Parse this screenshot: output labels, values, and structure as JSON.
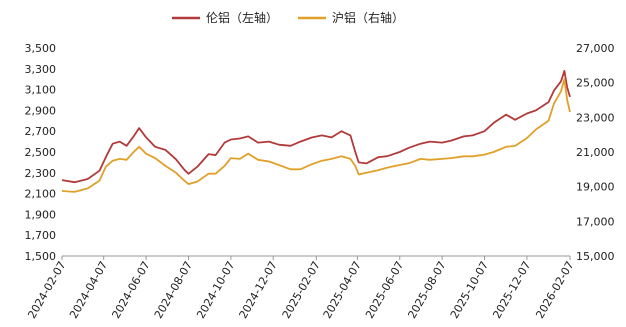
{
  "chart_data": {
    "type": "line",
    "legend_position": "top-center",
    "grid": false,
    "x_ticks": [
      "2024-02-07",
      "2024-04-07",
      "2024-06-07",
      "2024-08-07",
      "2024-10-07",
      "2024-12-07",
      "2025-02-07",
      "2025-04-07",
      "2025-06-07",
      "2025-08-07",
      "2025-10-07",
      "2025-12-07",
      "2026-02-07"
    ],
    "y_left": {
      "ticks": [
        "1,500",
        "1,700",
        "1,900",
        "2,100",
        "2,300",
        "2,500",
        "2,700",
        "2,900",
        "3,100",
        "3,300",
        "3,500"
      ],
      "range": [
        1500,
        3500
      ]
    },
    "y_right": {
      "ticks": [
        "15,000",
        "17,000",
        "19,000",
        "21,000",
        "23,000",
        "25,000",
        "27,000"
      ],
      "range": [
        15000,
        27000
      ]
    },
    "series": [
      {
        "name": "伦铝（左轴）",
        "axis": "left",
        "color": "#b23a3a",
        "points": [
          [
            "2024-02-07",
            2230
          ],
          [
            "2024-02-25",
            2210
          ],
          [
            "2024-03-15",
            2240
          ],
          [
            "2024-04-01",
            2320
          ],
          [
            "2024-04-10",
            2450
          ],
          [
            "2024-04-20",
            2580
          ],
          [
            "2024-04-30",
            2600
          ],
          [
            "2024-05-10",
            2560
          ],
          [
            "2024-05-20",
            2650
          ],
          [
            "2024-05-28",
            2730
          ],
          [
            "2024-06-07",
            2640
          ],
          [
            "2024-06-20",
            2550
          ],
          [
            "2024-07-05",
            2520
          ],
          [
            "2024-07-20",
            2430
          ],
          [
            "2024-08-01",
            2330
          ],
          [
            "2024-08-07",
            2290
          ],
          [
            "2024-08-20",
            2360
          ],
          [
            "2024-09-05",
            2480
          ],
          [
            "2024-09-15",
            2470
          ],
          [
            "2024-09-28",
            2590
          ],
          [
            "2024-10-07",
            2620
          ],
          [
            "2024-10-20",
            2630
          ],
          [
            "2024-11-01",
            2650
          ],
          [
            "2024-11-15",
            2590
          ],
          [
            "2024-12-01",
            2600
          ],
          [
            "2024-12-15",
            2570
          ],
          [
            "2025-01-01",
            2560
          ],
          [
            "2025-01-15",
            2600
          ],
          [
            "2025-02-01",
            2640
          ],
          [
            "2025-02-15",
            2660
          ],
          [
            "2025-03-01",
            2640
          ],
          [
            "2025-03-15",
            2700
          ],
          [
            "2025-03-28",
            2660
          ],
          [
            "2025-04-04",
            2500
          ],
          [
            "2025-04-09",
            2400
          ],
          [
            "2025-04-20",
            2390
          ],
          [
            "2025-05-07",
            2450
          ],
          [
            "2025-05-20",
            2460
          ],
          [
            "2025-06-07",
            2500
          ],
          [
            "2025-06-20",
            2540
          ],
          [
            "2025-07-07",
            2580
          ],
          [
            "2025-07-20",
            2600
          ],
          [
            "2025-08-07",
            2590
          ],
          [
            "2025-08-20",
            2610
          ],
          [
            "2025-09-07",
            2650
          ],
          [
            "2025-09-20",
            2660
          ],
          [
            "2025-10-07",
            2700
          ],
          [
            "2025-10-20",
            2780
          ],
          [
            "2025-11-07",
            2860
          ],
          [
            "2025-11-20",
            2810
          ],
          [
            "2025-12-07",
            2870
          ],
          [
            "2025-12-20",
            2900
          ],
          [
            "2026-01-07",
            2980
          ],
          [
            "2026-01-15",
            3090
          ],
          [
            "2026-01-25",
            3180
          ],
          [
            "2026-01-30",
            3280
          ],
          [
            "2026-02-03",
            3120
          ],
          [
            "2026-02-07",
            3030
          ]
        ]
      },
      {
        "name": "沪铝（右轴）",
        "axis": "right",
        "color": "#e0a02a",
        "points": [
          [
            "2024-02-07",
            18750
          ],
          [
            "2024-02-25",
            18700
          ],
          [
            "2024-03-15",
            18900
          ],
          [
            "2024-04-01",
            19350
          ],
          [
            "2024-04-10",
            20150
          ],
          [
            "2024-04-20",
            20500
          ],
          [
            "2024-04-30",
            20600
          ],
          [
            "2024-05-10",
            20550
          ],
          [
            "2024-05-20",
            21000
          ],
          [
            "2024-05-28",
            21300
          ],
          [
            "2024-06-07",
            20900
          ],
          [
            "2024-06-20",
            20650
          ],
          [
            "2024-07-05",
            20200
          ],
          [
            "2024-07-20",
            19800
          ],
          [
            "2024-08-01",
            19350
          ],
          [
            "2024-08-07",
            19150
          ],
          [
            "2024-08-20",
            19300
          ],
          [
            "2024-09-05",
            19750
          ],
          [
            "2024-09-15",
            19750
          ],
          [
            "2024-09-28",
            20200
          ],
          [
            "2024-10-07",
            20650
          ],
          [
            "2024-10-20",
            20600
          ],
          [
            "2024-11-01",
            20900
          ],
          [
            "2024-11-15",
            20550
          ],
          [
            "2024-12-01",
            20450
          ],
          [
            "2024-12-15",
            20250
          ],
          [
            "2025-01-01",
            20000
          ],
          [
            "2025-01-15",
            20000
          ],
          [
            "2025-02-01",
            20300
          ],
          [
            "2025-02-15",
            20500
          ],
          [
            "2025-03-01",
            20600
          ],
          [
            "2025-03-15",
            20750
          ],
          [
            "2025-03-28",
            20600
          ],
          [
            "2025-04-04",
            20200
          ],
          [
            "2025-04-09",
            19700
          ],
          [
            "2025-04-20",
            19800
          ],
          [
            "2025-05-07",
            19950
          ],
          [
            "2025-05-20",
            20100
          ],
          [
            "2025-06-07",
            20250
          ],
          [
            "2025-06-20",
            20350
          ],
          [
            "2025-07-07",
            20600
          ],
          [
            "2025-07-20",
            20550
          ],
          [
            "2025-08-07",
            20600
          ],
          [
            "2025-08-20",
            20650
          ],
          [
            "2025-09-07",
            20750
          ],
          [
            "2025-09-20",
            20750
          ],
          [
            "2025-10-07",
            20850
          ],
          [
            "2025-10-20",
            21000
          ],
          [
            "2025-11-07",
            21300
          ],
          [
            "2025-11-20",
            21350
          ],
          [
            "2025-12-07",
            21800
          ],
          [
            "2025-12-20",
            22300
          ],
          [
            "2026-01-07",
            22800
          ],
          [
            "2026-01-15",
            23800
          ],
          [
            "2026-01-25",
            24500
          ],
          [
            "2026-01-30",
            25200
          ],
          [
            "2026-02-03",
            24000
          ],
          [
            "2026-02-07",
            23300
          ]
        ]
      }
    ]
  }
}
